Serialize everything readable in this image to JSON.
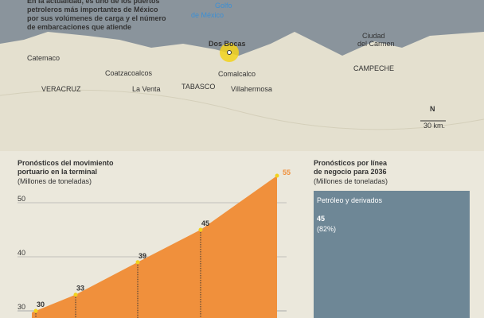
{
  "intro": [
    "En la actualidad, es uno de los puertos",
    "petroleros más importantes de México",
    "por sus volúmenes de carga y el número",
    "de embarcaciones que atiende"
  ],
  "map": {
    "sea": [
      "Golfo",
      "de México"
    ],
    "places": [
      "Catemaco",
      "Coatzacoalcos",
      "VERACRUZ",
      "La Venta",
      "TABASCO",
      "Dos Bocas",
      "Comalcalco",
      "Villahermosa",
      "Ciudad",
      "del Carmen",
      "CAMPECHE"
    ],
    "north": "N",
    "scale": "30 km."
  },
  "chart_data": {
    "type": "area",
    "title": [
      "Pronósticos del movimiento",
      "portuario en la terminal"
    ],
    "subtitle": "(Millones de toneladas)",
    "categories": [
      null,
      null,
      null,
      null,
      null
    ],
    "values": [
      30,
      33,
      39,
      45,
      55
    ],
    "color": "#f0903c",
    "ylim": [
      28.5,
      57
    ],
    "yticks": [
      30,
      40,
      50
    ]
  },
  "panel": {
    "title": [
      "Pronósticos por línea",
      "de negocio para 2036"
    ],
    "subtitle": "(Millones de toneladas)",
    "segment": {
      "name": "Petróleo y derivados",
      "value": 45,
      "share": "(82%)"
    }
  }
}
